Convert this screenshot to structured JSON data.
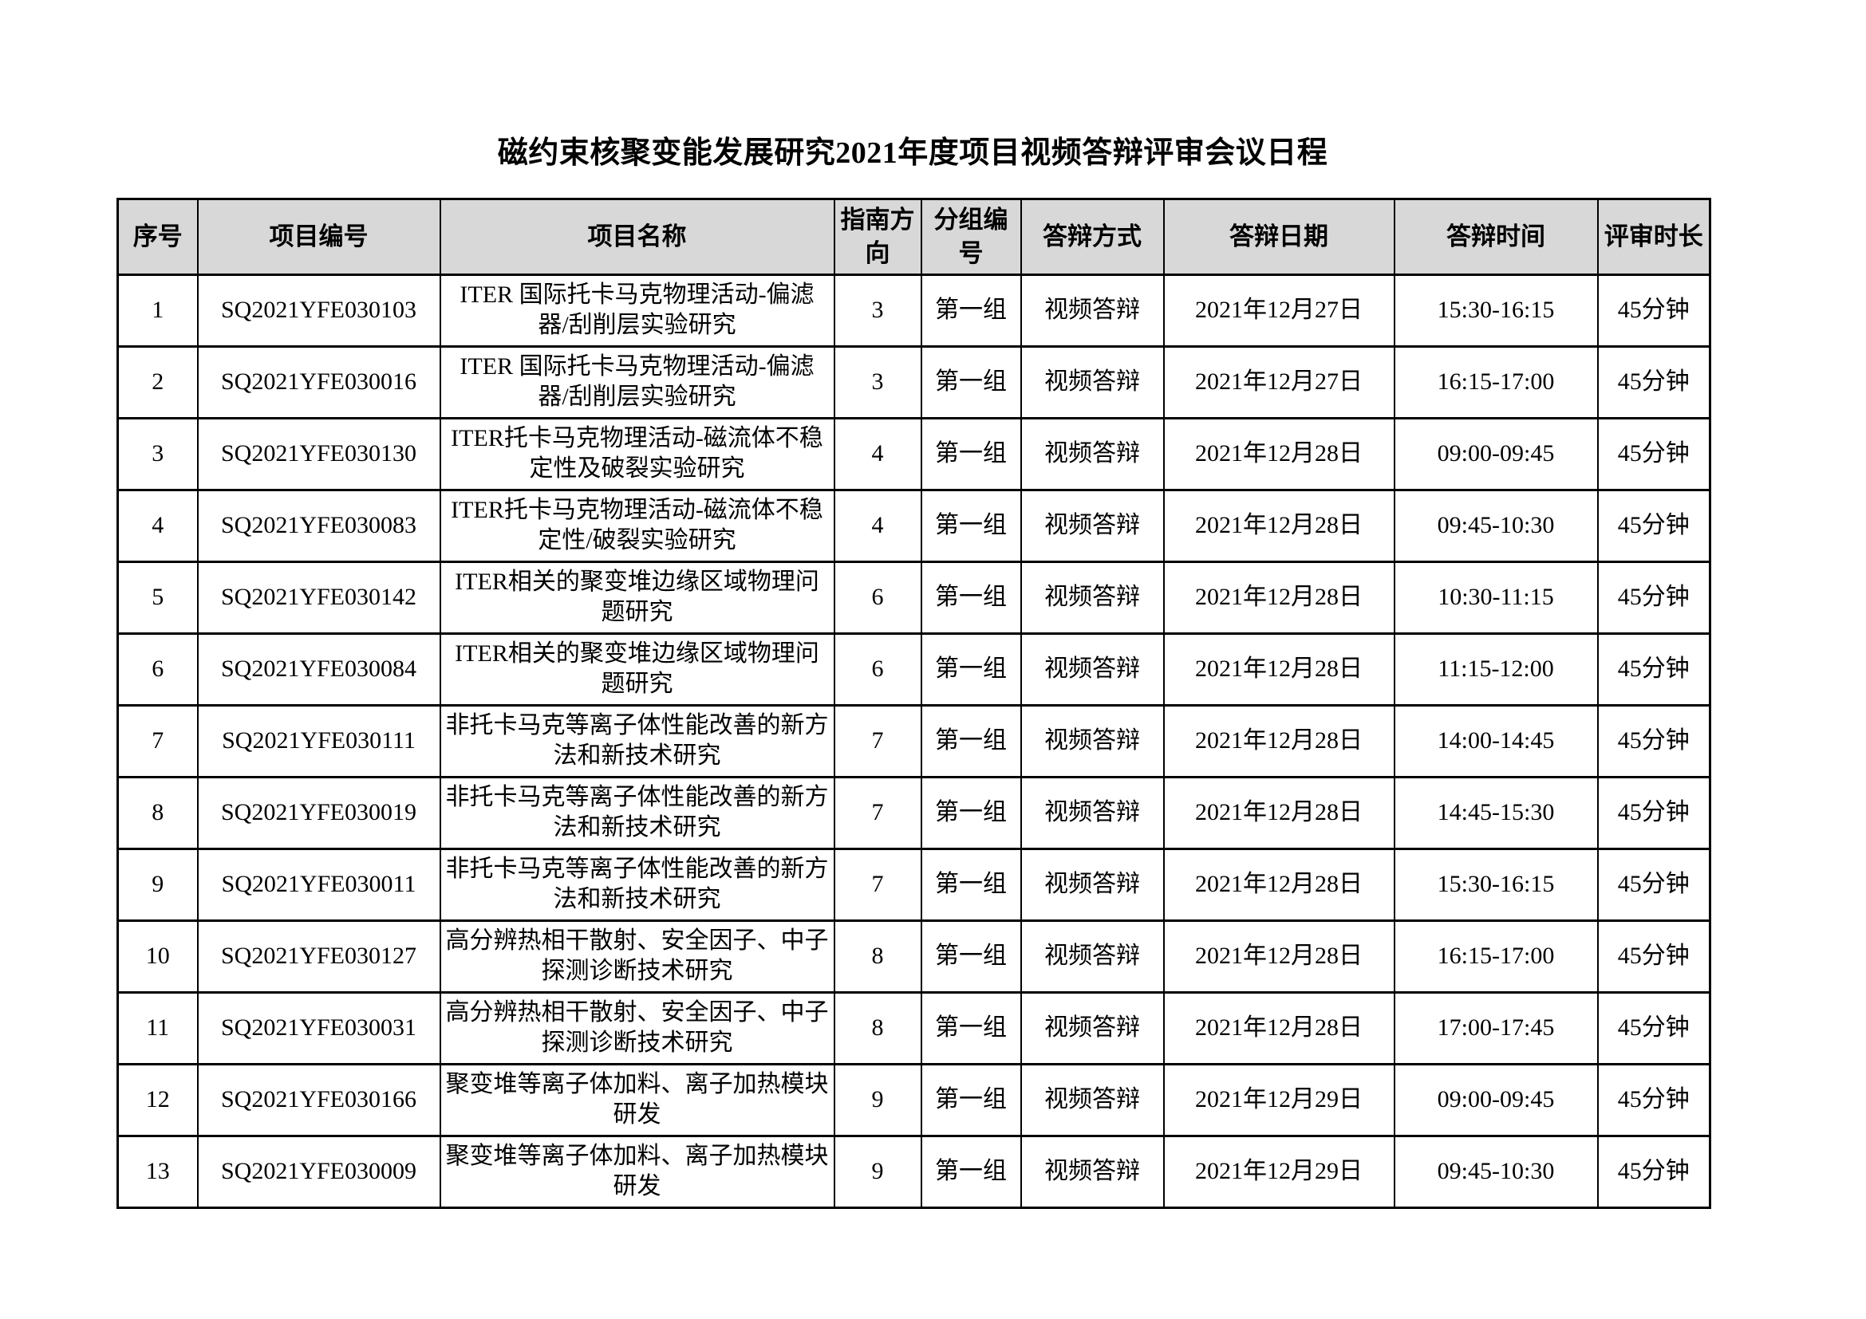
{
  "title": "磁约束核聚变能发展研究2021年度项目视频答辩评审会议日程",
  "table": {
    "headers": [
      "序号",
      "项目编号",
      "项目名称",
      "指南方向",
      "分组编号",
      "答辩方式",
      "答辩日期",
      "答辩时间",
      "评审时长"
    ],
    "column_keys": [
      "index",
      "project-code",
      "project-name",
      "guide-direction",
      "group-number",
      "defense-method",
      "defense-date",
      "defense-time",
      "review-duration"
    ],
    "header_bg_color": "#d8d8d8",
    "border_color": "#000000",
    "rows": [
      [
        "1",
        "SQ2021YFE030103",
        "ITER 国际托卡马克物理活动-偏滤器/刮削层实验研究",
        "3",
        "第一组",
        "视频答辩",
        "2021年12月27日",
        "15:30-16:15",
        "45分钟"
      ],
      [
        "2",
        "SQ2021YFE030016",
        "ITER 国际托卡马克物理活动-偏滤器/刮削层实验研究",
        "3",
        "第一组",
        "视频答辩",
        "2021年12月27日",
        "16:15-17:00",
        "45分钟"
      ],
      [
        "3",
        "SQ2021YFE030130",
        "ITER托卡马克物理活动-磁流体不稳定性及破裂实验研究",
        "4",
        "第一组",
        "视频答辩",
        "2021年12月28日",
        "09:00-09:45",
        "45分钟"
      ],
      [
        "4",
        "SQ2021YFE030083",
        "ITER托卡马克物理活动-磁流体不稳定性/破裂实验研究",
        "4",
        "第一组",
        "视频答辩",
        "2021年12月28日",
        "09:45-10:30",
        "45分钟"
      ],
      [
        "5",
        "SQ2021YFE030142",
        "ITER相关的聚变堆边缘区域物理问题研究",
        "6",
        "第一组",
        "视频答辩",
        "2021年12月28日",
        "10:30-11:15",
        "45分钟"
      ],
      [
        "6",
        "SQ2021YFE030084",
        "ITER相关的聚变堆边缘区域物理问题研究",
        "6",
        "第一组",
        "视频答辩",
        "2021年12月28日",
        "11:15-12:00",
        "45分钟"
      ],
      [
        "7",
        "SQ2021YFE030111",
        "非托卡马克等离子体性能改善的新方法和新技术研究",
        "7",
        "第一组",
        "视频答辩",
        "2021年12月28日",
        "14:00-14:45",
        "45分钟"
      ],
      [
        "8",
        "SQ2021YFE030019",
        "非托卡马克等离子体性能改善的新方法和新技术研究",
        "7",
        "第一组",
        "视频答辩",
        "2021年12月28日",
        "14:45-15:30",
        "45分钟"
      ],
      [
        "9",
        "SQ2021YFE030011",
        "非托卡马克等离子体性能改善的新方法和新技术研究",
        "7",
        "第一组",
        "视频答辩",
        "2021年12月28日",
        "15:30-16:15",
        "45分钟"
      ],
      [
        "10",
        "SQ2021YFE030127",
        "高分辨热相干散射、安全因子、中子探测诊断技术研究",
        "8",
        "第一组",
        "视频答辩",
        "2021年12月28日",
        "16:15-17:00",
        "45分钟"
      ],
      [
        "11",
        "SQ2021YFE030031",
        "高分辨热相干散射、安全因子、中子探测诊断技术研究",
        "8",
        "第一组",
        "视频答辩",
        "2021年12月28日",
        "17:00-17:45",
        "45分钟"
      ],
      [
        "12",
        "SQ2021YFE030166",
        "聚变堆等离子体加料、离子加热模块研发",
        "9",
        "第一组",
        "视频答辩",
        "2021年12月29日",
        "09:00-09:45",
        "45分钟"
      ],
      [
        "13",
        "SQ2021YFE030009",
        "聚变堆等离子体加料、离子加热模块研发",
        "9",
        "第一组",
        "视频答辩",
        "2021年12月29日",
        "09:45-10:30",
        "45分钟"
      ]
    ]
  }
}
